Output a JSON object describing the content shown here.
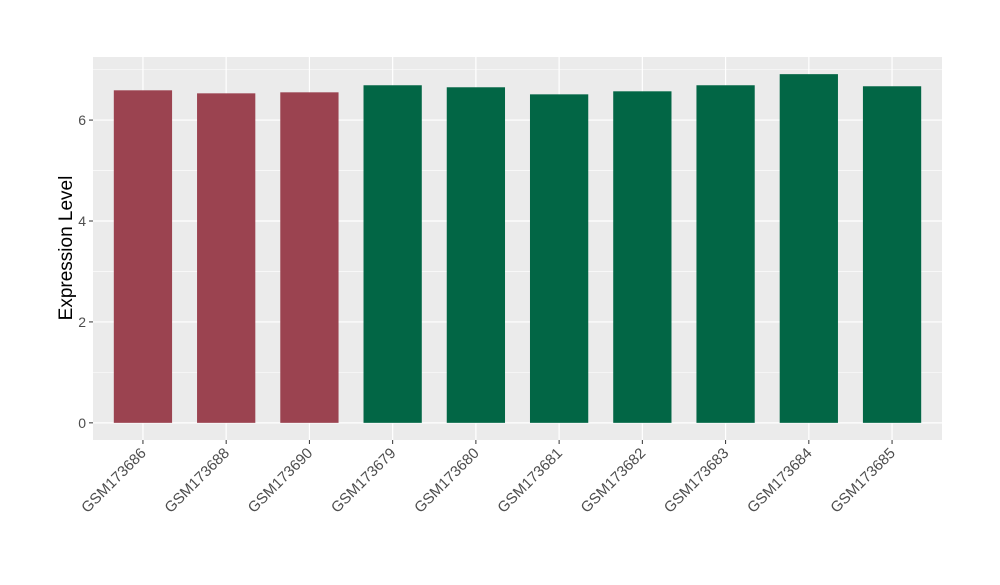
{
  "chart_data": {
    "type": "bar",
    "title": "",
    "xlabel": "",
    "ylabel": "Expression Level",
    "ylim": [
      -0.34,
      7.25
    ],
    "yticks": [
      0,
      2,
      4,
      6
    ],
    "grid": true,
    "categories": [
      "GSM173686",
      "GSM173688",
      "GSM173690",
      "GSM173679",
      "GSM173680",
      "GSM173681",
      "GSM173682",
      "GSM173683",
      "GSM173684",
      "GSM173685"
    ],
    "values": [
      6.59,
      6.53,
      6.55,
      6.69,
      6.65,
      6.51,
      6.57,
      6.69,
      6.91,
      6.67
    ],
    "bar_colors": [
      "#9b4350",
      "#9b4350",
      "#9b4350",
      "#026645",
      "#026645",
      "#026645",
      "#026645",
      "#026645",
      "#026645",
      "#026645"
    ],
    "panel_background": "#ebebeb"
  }
}
